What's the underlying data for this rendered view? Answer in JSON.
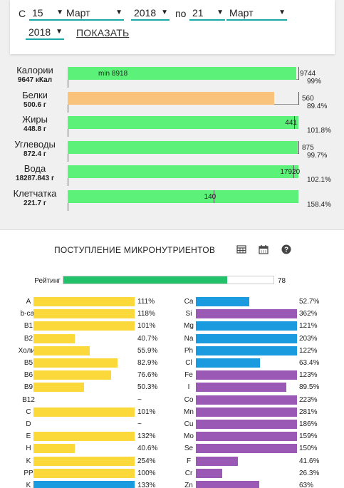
{
  "date_range": {
    "from_label": "С",
    "from_day": "15",
    "from_month": "Март",
    "from_year": "2018",
    "to_label": "по",
    "to_day": "21",
    "to_month": "Март",
    "to_year": "2018",
    "show_button": "ПОКАЗАТЬ"
  },
  "macros": [
    {
      "name": "Калории",
      "amount": "9647 кКал",
      "target": "9744",
      "min": "min 8918",
      "percent": "99%",
      "fill": 0.99,
      "color": "#5cf27a"
    },
    {
      "name": "Белки",
      "amount": "500.6 г",
      "target": "560",
      "percent": "89.4%",
      "fill": 0.894,
      "color": "#fac37c"
    },
    {
      "name": "Жиры",
      "amount": "448.8 г",
      "target": "441",
      "percent": "101.8%",
      "fill": 1.018,
      "color": "#5cf27a"
    },
    {
      "name": "Углеводы",
      "amount": "872.4 г",
      "target": "875",
      "percent": "99.7%",
      "fill": 0.997,
      "color": "#5cf27a"
    },
    {
      "name": "Вода",
      "amount": "18287.843 г",
      "target": "17920",
      "percent": "102.1%",
      "fill": 1.021,
      "color": "#5cf27a"
    },
    {
      "name": "Клетчатка",
      "amount": "221.7 г",
      "target": "140",
      "percent": "158.4%",
      "fill": 1.584,
      "color": "#5cf27a"
    }
  ],
  "micro": {
    "title": "ПОСТУПЛЕНИЕ МИКРОНУТРИЕНТОВ",
    "icons": [
      "table-icon",
      "calendar-icon",
      "help-icon"
    ],
    "rating_label": "Рейтинг",
    "rating_value": "78",
    "rating_fill": 0.78,
    "left": [
      {
        "name": "A",
        "percent": "111%",
        "fill": 1.11,
        "color": "#fbd93a"
      },
      {
        "name": "b-car",
        "percent": "118%",
        "fill": 1.18,
        "color": "#fbd93a"
      },
      {
        "name": "B1",
        "percent": "101%",
        "fill": 1.01,
        "color": "#fbd93a"
      },
      {
        "name": "B2",
        "percent": "40.7%",
        "fill": 0.407,
        "color": "#fbd93a"
      },
      {
        "name": "Холин",
        "percent": "55.9%",
        "fill": 0.559,
        "color": "#fbd93a"
      },
      {
        "name": "B5",
        "percent": "82.9%",
        "fill": 0.829,
        "color": "#fbd93a"
      },
      {
        "name": "B6",
        "percent": "76.6%",
        "fill": 0.766,
        "color": "#fbd93a"
      },
      {
        "name": "B9",
        "percent": "50.3%",
        "fill": 0.503,
        "color": "#fbd93a"
      },
      {
        "name": "B12",
        "percent": "~",
        "fill": 0,
        "color": "#fbd93a"
      },
      {
        "name": "C",
        "percent": "101%",
        "fill": 1.01,
        "color": "#fbd93a"
      },
      {
        "name": "D",
        "percent": "~",
        "fill": 0,
        "color": "#fbd93a"
      },
      {
        "name": "E",
        "percent": "132%",
        "fill": 1.32,
        "color": "#fbd93a"
      },
      {
        "name": "H",
        "percent": "40.6%",
        "fill": 0.406,
        "color": "#fbd93a"
      },
      {
        "name": "K",
        "percent": "254%",
        "fill": 2.54,
        "color": "#fbd93a"
      },
      {
        "name": "PP",
        "percent": "100%",
        "fill": 1.0,
        "color": "#fbd93a"
      },
      {
        "name": "K",
        "percent": "133%",
        "fill": 1.33,
        "color": "#1a9be0"
      }
    ],
    "right": [
      {
        "name": "Ca",
        "percent": "52.7%",
        "fill": 0.527,
        "color": "#1a9be0"
      },
      {
        "name": "Si",
        "percent": "362%",
        "fill": 3.62,
        "color": "#9b59b6"
      },
      {
        "name": "Mg",
        "percent": "121%",
        "fill": 1.21,
        "color": "#1a9be0"
      },
      {
        "name": "Na",
        "percent": "203%",
        "fill": 2.03,
        "color": "#1a9be0"
      },
      {
        "name": "Ph",
        "percent": "122%",
        "fill": 1.22,
        "color": "#1a9be0"
      },
      {
        "name": "Cl",
        "percent": "63.4%",
        "fill": 0.634,
        "color": "#1a9be0"
      },
      {
        "name": "Fe",
        "percent": "123%",
        "fill": 1.23,
        "color": "#9b59b6"
      },
      {
        "name": "I",
        "percent": "89.5%",
        "fill": 0.895,
        "color": "#9b59b6"
      },
      {
        "name": "Co",
        "percent": "223%",
        "fill": 2.23,
        "color": "#9b59b6"
      },
      {
        "name": "Mn",
        "percent": "281%",
        "fill": 2.81,
        "color": "#9b59b6"
      },
      {
        "name": "Cu",
        "percent": "186%",
        "fill": 1.86,
        "color": "#9b59b6"
      },
      {
        "name": "Mo",
        "percent": "159%",
        "fill": 1.59,
        "color": "#9b59b6"
      },
      {
        "name": "Se",
        "percent": "150%",
        "fill": 1.5,
        "color": "#9b59b6"
      },
      {
        "name": "F",
        "percent": "41.6%",
        "fill": 0.416,
        "color": "#9b59b6"
      },
      {
        "name": "Cr",
        "percent": "26.3%",
        "fill": 0.263,
        "color": "#9b59b6"
      },
      {
        "name": "Zn",
        "percent": "63%",
        "fill": 0.63,
        "color": "#9b59b6"
      }
    ]
  }
}
